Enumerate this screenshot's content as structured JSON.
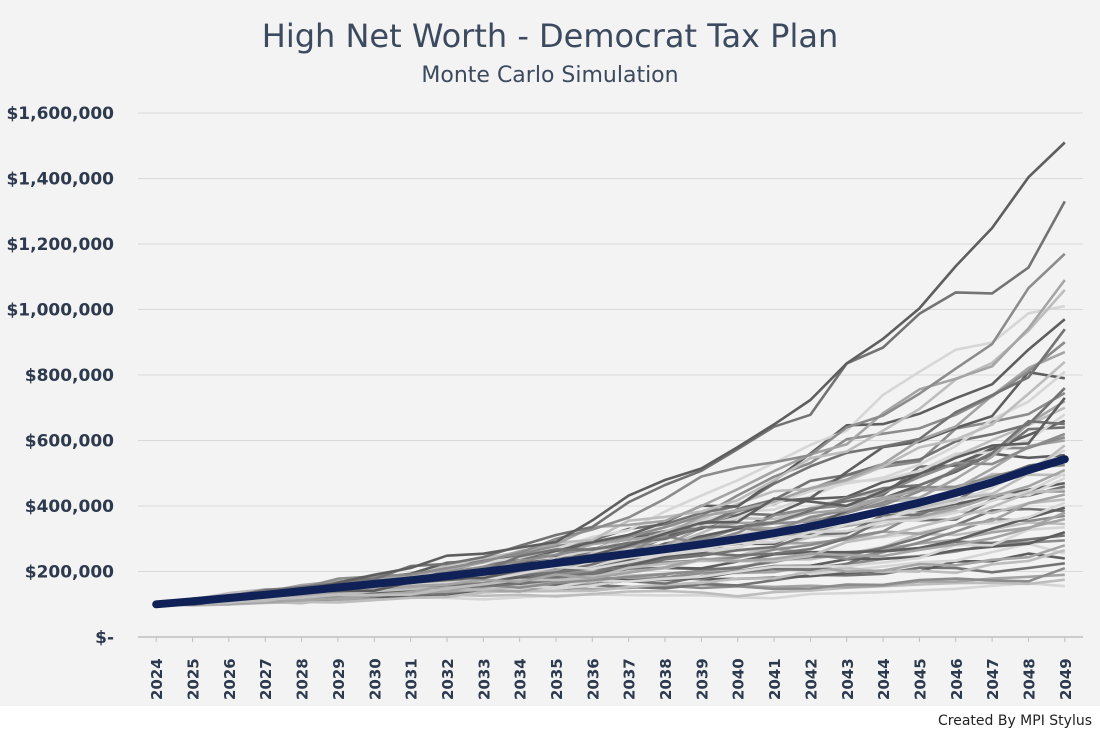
{
  "chart_data": {
    "type": "line",
    "title": "High Net Worth - Democrat Tax Plan",
    "subtitle": "Monte Carlo Simulation",
    "xlabel": "",
    "ylabel": "",
    "x": [
      "2024",
      "2025",
      "2026",
      "2027",
      "2028",
      "2029",
      "2030",
      "2031",
      "2032",
      "2033",
      "2034",
      "2035",
      "2036",
      "2037",
      "2038",
      "2039",
      "2040",
      "2041",
      "2042",
      "2043",
      "2044",
      "2045",
      "2046",
      "2047",
      "2048",
      "2049"
    ],
    "yticks": [
      "$-",
      "$200,000",
      "$400,000",
      "$600,000",
      "$800,000",
      "$1,000,000",
      "$1,200,000",
      "$1,400,000",
      "$1,600,000"
    ],
    "ylim": [
      0,
      1600000
    ],
    "grid": "horizontal",
    "mean_series": {
      "name": "",
      "color": "#0f2157",
      "values": [
        100000,
        109000,
        119000,
        129000,
        140000,
        151000,
        162000,
        173000,
        186000,
        199000,
        212000,
        226000,
        240000,
        254000,
        268000,
        283000,
        299000,
        317000,
        337000,
        360000,
        385000,
        410000,
        440000,
        472000,
        510000,
        543000
      ]
    },
    "simulations": {
      "count": 60,
      "colors": [
        "#d6d6d6",
        "#bdbdbd",
        "#a4a4a4",
        "#8c8c8c",
        "#737373",
        "#5e5e5e"
      ],
      "final_values": [
        155000,
        175000,
        190000,
        210000,
        225000,
        240000,
        255000,
        265000,
        280000,
        295000,
        310000,
        320000,
        335000,
        345000,
        360000,
        370000,
        385000,
        395000,
        410000,
        420000,
        435000,
        445000,
        460000,
        470000,
        485000,
        495000,
        510000,
        525000,
        540000,
        555000,
        570000,
        585000,
        600000,
        620000,
        640000,
        660000,
        680000,
        700000,
        720000,
        745000,
        760000,
        790000,
        810000,
        840000,
        870000,
        900000,
        940000,
        970000,
        1010000,
        1060000,
        1090000,
        1170000,
        1330000,
        1510000,
        500000,
        450000,
        380000,
        610000,
        650000,
        730000
      ]
    }
  },
  "footer": {
    "credit": "Created By MPI Stylus"
  }
}
